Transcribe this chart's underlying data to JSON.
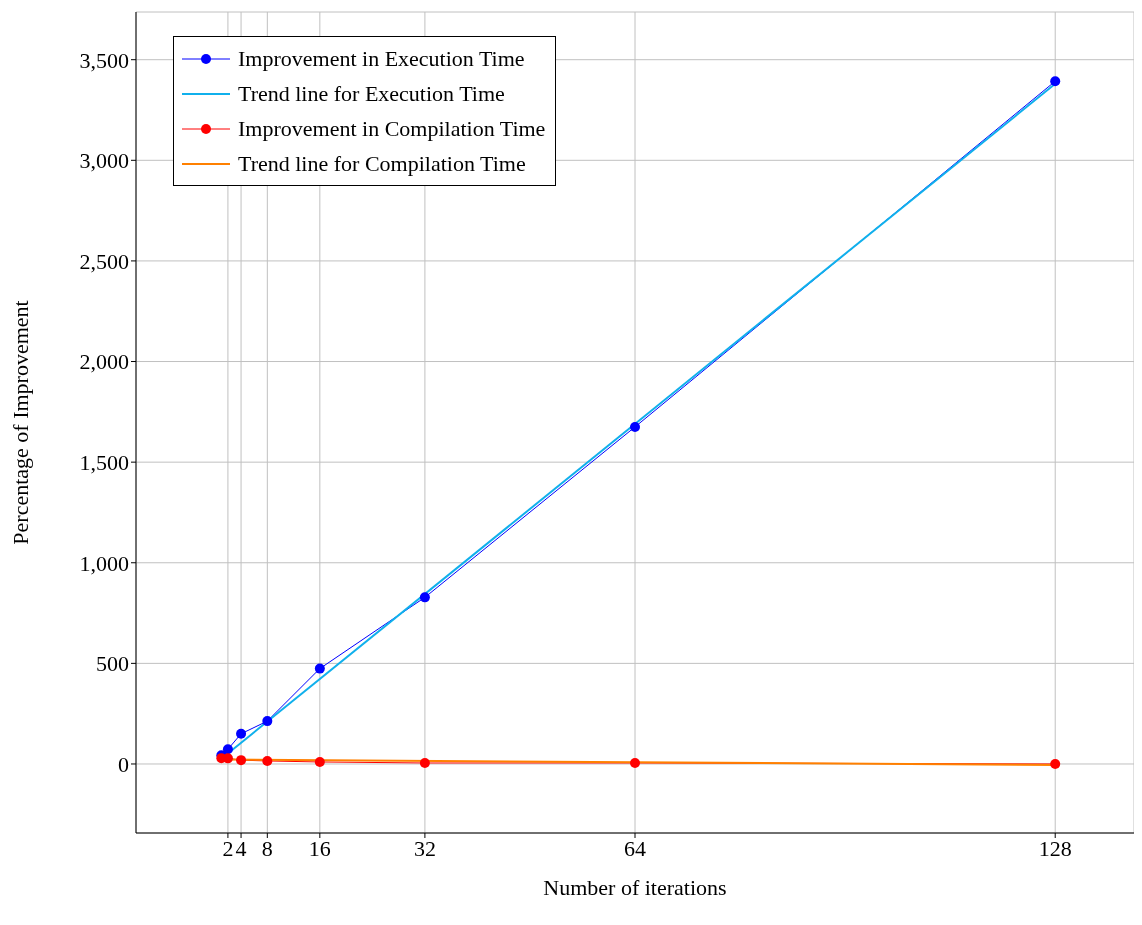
{
  "chart_data": {
    "type": "line",
    "xlabel": "Number of iterations",
    "ylabel": "Percentage of Improvement",
    "xlim": [
      -12,
      140
    ],
    "xticks": [
      2,
      4,
      8,
      16,
      32,
      64,
      128
    ],
    "ylim": [
      -343,
      3737
    ],
    "yticks": [
      {
        "value": 0,
        "label": "0"
      },
      {
        "value": 500,
        "label": "500"
      },
      {
        "value": 1000,
        "label": "1,000"
      },
      {
        "value": 1500,
        "label": "1,500"
      },
      {
        "value": 2000,
        "label": "2,000"
      },
      {
        "value": 2500,
        "label": "2,500"
      },
      {
        "value": 3000,
        "label": "3,000"
      },
      {
        "value": 3500,
        "label": "3,500"
      }
    ],
    "grid": true,
    "legend": "top left",
    "line_style": "solid",
    "series": [
      {
        "name": "Improvement in Execution Time",
        "color": "#0000ff",
        "marker": "circle",
        "x": [
          1,
          2,
          4,
          8,
          16,
          32,
          64,
          128
        ],
        "values": [
          43,
          73,
          150,
          213,
          474,
          828,
          1675,
          3393
        ]
      },
      {
        "name": "Trend line for Execution Time",
        "color": "#10b0ec",
        "marker": "none",
        "x": [
          1,
          128
        ],
        "values": [
          26,
          3380
        ]
      },
      {
        "name": "Improvement in Compilation Time",
        "color": "#ff0000",
        "marker": "circle",
        "x": [
          1,
          2,
          4,
          8,
          16,
          32,
          64,
          128
        ],
        "values": [
          29,
          28,
          19,
          15,
          10,
          5,
          5,
          0
        ]
      },
      {
        "name": "Trend line for Compilation Time",
        "color": "#ff8000",
        "marker": "none",
        "x": [
          1,
          128
        ],
        "values": [
          22,
          -5
        ]
      }
    ]
  }
}
